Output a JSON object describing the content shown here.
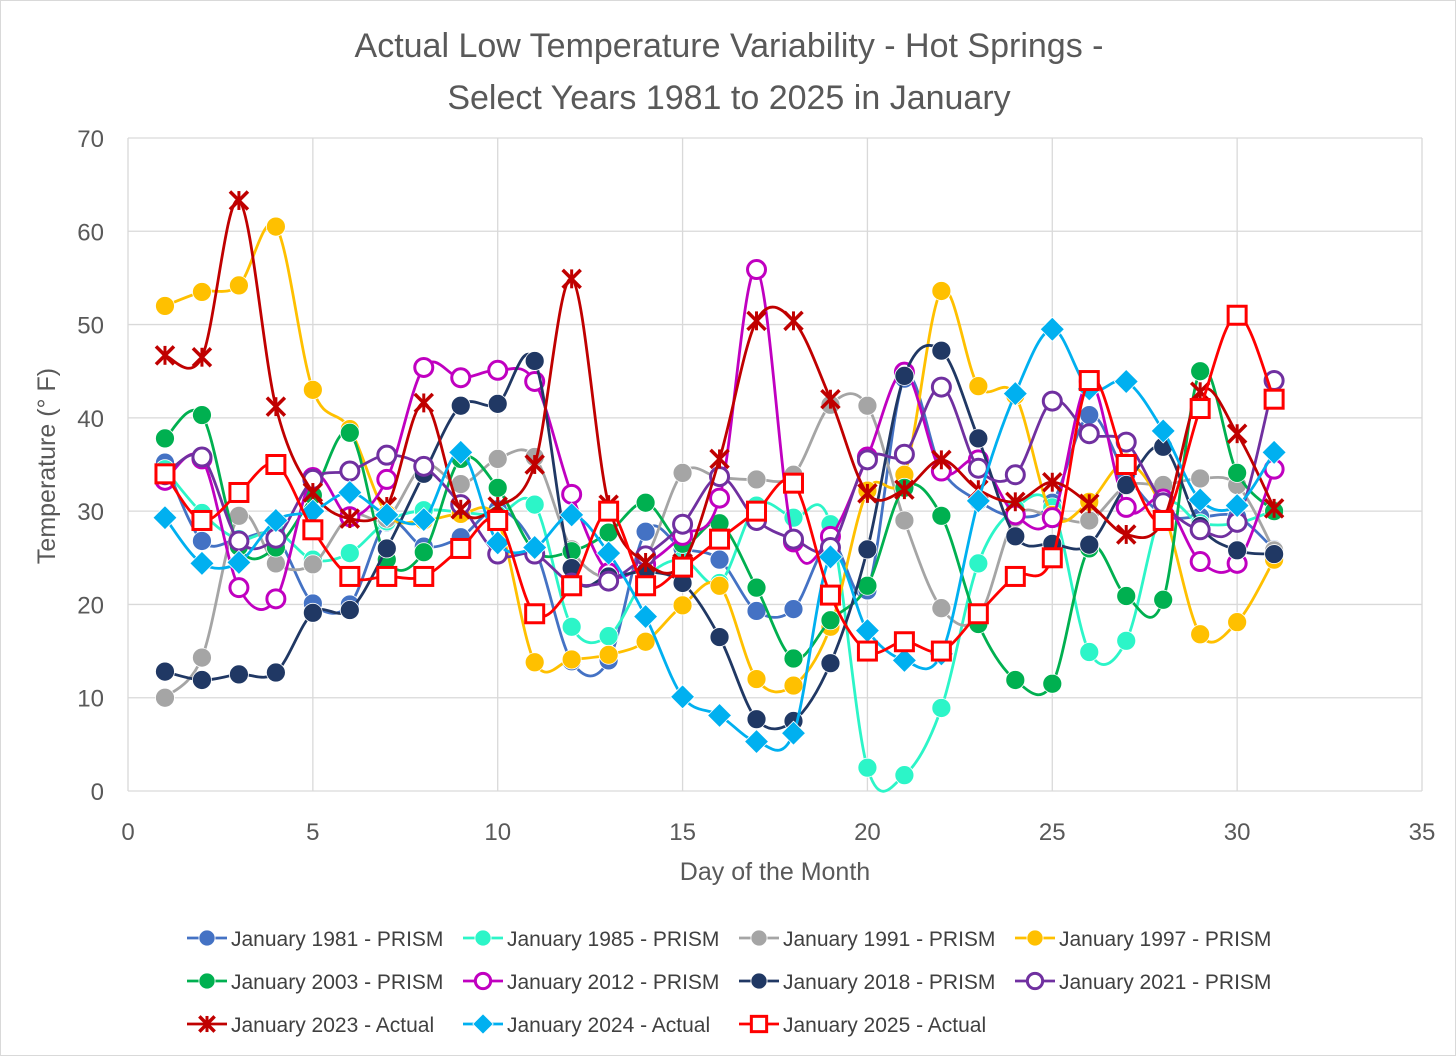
{
  "chart_data": {
    "type": "line",
    "title": [
      "Actual Low Temperature Variability - Hot Springs -",
      "Select Years 1981 to 2025  in January"
    ],
    "xlabel": "Day of the Month",
    "ylabel": "Temperature  (° F)",
    "xlim": [
      0,
      35
    ],
    "ylim": [
      0,
      70
    ],
    "xticks": [
      0,
      5,
      10,
      15,
      20,
      25,
      30,
      35
    ],
    "yticks": [
      0,
      10,
      20,
      30,
      40,
      50,
      60,
      70
    ],
    "grid": true,
    "legend_position": "bottom",
    "series": [
      {
        "name": "January 1981 - PRISM",
        "color": "#4472c4",
        "marker": "circle",
        "x": [
          1,
          2,
          3,
          4,
          5,
          6,
          7,
          8,
          9,
          10,
          11,
          12,
          13,
          14,
          15,
          16,
          17,
          18,
          19,
          20,
          21,
          22,
          23,
          24,
          25,
          26,
          27,
          28,
          29,
          30,
          31
        ],
        "values": [
          35.2,
          26.8,
          27.0,
          27.2,
          20.1,
          20.0,
          28.8,
          26.2,
          27.2,
          30.2,
          26.0,
          13.9,
          14.0,
          27.8,
          26.0,
          24.8,
          19.3,
          19.5,
          26.7,
          21.5,
          44.2,
          34.5,
          31.1,
          29.4,
          30.9,
          40.3,
          33.9,
          29.6,
          29.4,
          29.4,
          25.9
        ]
      },
      {
        "name": "January 1985 - PRISM",
        "color": "#2cf5c8",
        "marker": "circle",
        "x": [
          1,
          2,
          3,
          4,
          5,
          6,
          7,
          8,
          9,
          10,
          11,
          12,
          13,
          14,
          15,
          16,
          17,
          18,
          19,
          20,
          21,
          22,
          23,
          24,
          25,
          26,
          27,
          28,
          29,
          30,
          31
        ],
        "values": [
          34.5,
          29.8,
          27.0,
          27.8,
          24.8,
          25.5,
          28.9,
          30.1,
          29.9,
          29.6,
          30.7,
          17.6,
          16.6,
          22.8,
          24.8,
          22.3,
          30.6,
          29.3,
          28.6,
          2.5,
          1.7,
          8.9,
          24.4,
          30.3,
          30.4,
          14.9,
          16.1,
          30.3,
          28.7,
          28.7,
          30.1
        ]
      },
      {
        "name": "January 1991 - PRISM",
        "color": "#a5a5a5",
        "marker": "circle",
        "x": [
          1,
          2,
          3,
          4,
          5,
          6,
          7,
          8,
          9,
          10,
          11,
          12,
          13,
          14,
          15,
          16,
          17,
          18,
          19,
          20,
          21,
          22,
          23,
          24,
          25,
          26,
          27,
          28,
          29,
          30,
          31
        ],
        "values": [
          10.0,
          14.3,
          29.5,
          24.4,
          24.3,
          29.5,
          29.2,
          34.9,
          32.9,
          35.6,
          35.8,
          25.9,
          22.8,
          25.0,
          34.1,
          33.6,
          33.4,
          33.9,
          41.4,
          41.3,
          29.0,
          19.6,
          18.6,
          29.3,
          29.4,
          29.0,
          32.7,
          32.8,
          33.5,
          32.8,
          25.8
        ]
      },
      {
        "name": "January 1997 - PRISM",
        "color": "#ffc000",
        "marker": "circle",
        "x": [
          1,
          2,
          3,
          4,
          5,
          6,
          7,
          8,
          9,
          10,
          11,
          12,
          13,
          14,
          15,
          16,
          17,
          18,
          19,
          20,
          21,
          22,
          23,
          24,
          25,
          26,
          27,
          28,
          29,
          30,
          31
        ],
        "values": [
          52.0,
          53.5,
          54.2,
          60.5,
          43.0,
          38.8,
          29.7,
          29.0,
          29.7,
          29.0,
          13.8,
          14.1,
          14.6,
          16.0,
          19.9,
          22.0,
          12.0,
          11.3,
          17.6,
          32.2,
          33.9,
          53.6,
          43.4,
          42.4,
          29.6,
          31.0,
          35.2,
          30.0,
          16.8,
          18.1,
          24.8
        ]
      },
      {
        "name": "January 2003 - PRISM",
        "color": "#00b050",
        "marker": "circle",
        "x": [
          1,
          2,
          3,
          4,
          5,
          6,
          7,
          8,
          9,
          10,
          11,
          12,
          13,
          14,
          15,
          16,
          17,
          18,
          19,
          20,
          21,
          22,
          23,
          24,
          25,
          26,
          27,
          28,
          29,
          30,
          31
        ],
        "values": [
          37.8,
          40.3,
          26.2,
          26.1,
          31.7,
          38.4,
          24.8,
          25.6,
          35.6,
          32.5,
          25.7,
          25.7,
          27.7,
          30.9,
          26.5,
          28.7,
          21.8,
          14.2,
          18.3,
          22.0,
          32.5,
          29.5,
          17.9,
          11.9,
          11.5,
          26.0,
          20.9,
          20.5,
          45.0,
          34.1,
          30.0
        ]
      },
      {
        "name": "January 2012 - PRISM",
        "color": "#c000c0",
        "marker": "ring",
        "x": [
          1,
          2,
          3,
          4,
          5,
          6,
          7,
          8,
          9,
          10,
          11,
          12,
          13,
          14,
          15,
          16,
          17,
          18,
          19,
          20,
          21,
          22,
          23,
          24,
          25,
          26,
          27,
          28,
          29,
          30,
          31
        ],
        "values": [
          33.3,
          35.6,
          21.8,
          20.6,
          33.6,
          29.4,
          33.4,
          45.4,
          44.3,
          45.1,
          43.9,
          31.8,
          23.4,
          24.3,
          27.4,
          31.4,
          55.9,
          26.7,
          27.3,
          35.8,
          44.9,
          34.3,
          35.5,
          29.6,
          29.3,
          43.9,
          30.4,
          31.3,
          24.6,
          24.4,
          34.5
        ]
      },
      {
        "name": "January 2018 - PRISM",
        "color": "#203864",
        "marker": "circle",
        "x": [
          1,
          2,
          3,
          4,
          5,
          6,
          7,
          8,
          9,
          10,
          11,
          12,
          13,
          14,
          15,
          16,
          17,
          18,
          19,
          20,
          21,
          22,
          23,
          24,
          25,
          26,
          27,
          28,
          29,
          30,
          31
        ],
        "values": [
          12.8,
          11.9,
          12.5,
          12.7,
          19.1,
          19.4,
          26.0,
          34.0,
          41.3,
          41.5,
          46.1,
          23.9,
          23.0,
          23.5,
          22.3,
          16.5,
          7.7,
          7.5,
          13.7,
          25.9,
          44.5,
          47.2,
          37.8,
          27.3,
          26.5,
          26.4,
          32.8,
          36.9,
          28.4,
          25.8,
          25.4
        ]
      },
      {
        "name": "January 2021 - PRISM",
        "color": "#7030a0",
        "marker": "ring",
        "x": [
          1,
          2,
          3,
          4,
          5,
          6,
          7,
          8,
          9,
          10,
          11,
          12,
          13,
          14,
          15,
          16,
          17,
          18,
          19,
          20,
          21,
          22,
          23,
          24,
          25,
          26,
          27,
          28,
          29,
          30,
          31
        ],
        "values": [
          33.9,
          35.8,
          26.8,
          27.1,
          33.4,
          34.3,
          36.0,
          34.8,
          30.7,
          25.4,
          25.4,
          22.3,
          22.5,
          25.2,
          28.6,
          33.7,
          29.0,
          27.0,
          26.1,
          35.5,
          36.1,
          43.3,
          34.6,
          33.9,
          41.8,
          38.3,
          37.4,
          30.9,
          28.0,
          28.8,
          44.0
        ]
      },
      {
        "name": "January 2023 - Actual",
        "color": "#c00000",
        "marker": "star",
        "x": [
          1,
          2,
          3,
          4,
          5,
          6,
          7,
          8,
          9,
          10,
          11,
          12,
          13,
          14,
          15,
          16,
          17,
          18,
          19,
          20,
          21,
          22,
          23,
          24,
          25,
          26,
          27,
          28,
          29,
          30,
          31
        ],
        "values": [
          46.7,
          46.5,
          63.3,
          41.2,
          32.0,
          29.2,
          30.5,
          41.6,
          30.2,
          30.5,
          35.0,
          54.9,
          30.7,
          24.5,
          24.4,
          35.6,
          50.4,
          50.4,
          42.0,
          31.9,
          32.3,
          35.5,
          32.3,
          31.0,
          33.1,
          30.8,
          27.5,
          29.0,
          42.8,
          38.3,
          30.3
        ]
      },
      {
        "name": "January 2024 - Actual",
        "color": "#00b0f0",
        "marker": "diamond",
        "x": [
          1,
          2,
          3,
          4,
          5,
          6,
          7,
          8,
          9,
          10,
          11,
          12,
          13,
          14,
          15,
          16,
          17,
          18,
          19,
          20,
          21,
          22,
          23,
          24,
          25,
          26,
          27,
          28,
          29,
          30,
          31
        ],
        "values": [
          29.3,
          24.4,
          24.5,
          29.0,
          30.0,
          32.0,
          29.6,
          29.1,
          36.3,
          26.6,
          26.1,
          29.6,
          25.5,
          18.7,
          10.1,
          8.1,
          5.3,
          6.2,
          25.1,
          17.2,
          14.0,
          14.7,
          31.1,
          42.6,
          49.5,
          43.1,
          43.9,
          38.6,
          31.2,
          30.6,
          36.3
        ]
      },
      {
        "name": "January 2025 - Actual",
        "color": "#ff0000",
        "marker": "square",
        "x": [
          1,
          2,
          3,
          4,
          5,
          6,
          7,
          8,
          9,
          10,
          11,
          12,
          13,
          14,
          15,
          16,
          17,
          18,
          19,
          20,
          21,
          22,
          23,
          24,
          25,
          26,
          27,
          28,
          29,
          30,
          31
        ],
        "values": [
          34.0,
          29.0,
          32.0,
          35.0,
          28.0,
          23.0,
          23.0,
          23.0,
          26.0,
          29.0,
          19.0,
          22.0,
          30.0,
          22.0,
          24.0,
          27.0,
          30.0,
          33.0,
          21.0,
          15.0,
          16.0,
          15.0,
          19.0,
          23.0,
          25.0,
          44.0,
          35.0,
          29.0,
          41.0,
          51.0,
          42.0
        ]
      }
    ]
  }
}
